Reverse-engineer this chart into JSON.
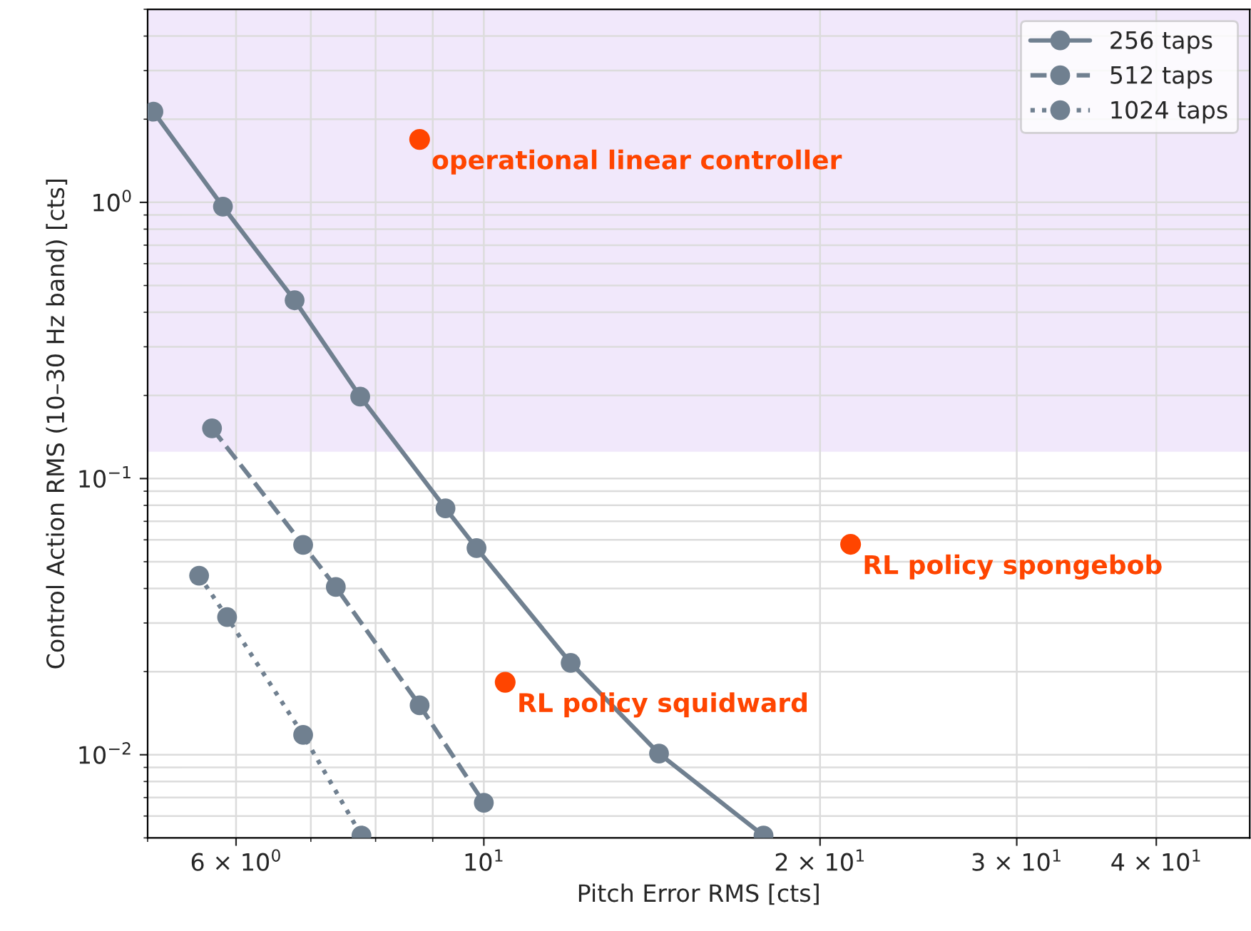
{
  "chart_data": {
    "type": "line",
    "xlabel": "Pitch Error RMS [cts]",
    "ylabel": "Control Action RMS (10–30 Hz band) [cts]",
    "log": "xy",
    "xlim": [
      5,
      48.5
    ],
    "ylim": [
      0.005,
      5
    ],
    "xticks": [
      {
        "value": 6,
        "label": "6 × 10$^{0}$"
      },
      {
        "value": 10,
        "label": "10$^{1}$"
      },
      {
        "value": 20,
        "label": "2 × 10$^{1}$"
      },
      {
        "value": 30,
        "label": "3 × 10$^{1}$"
      },
      {
        "value": 40,
        "label": "4 × 10$^{1}$"
      }
    ],
    "yticks": [
      {
        "value": 0.01,
        "label": "10$^{−2}$"
      },
      {
        "value": 0.1,
        "label": "10$^{−1}$"
      },
      {
        "value": 1,
        "label": "10$^{0}$"
      }
    ],
    "grid": true,
    "legend": "top right",
    "marker": "circle",
    "bands": [
      {
        "axis": "y",
        "from": 0.125,
        "to": 5,
        "color": "#f1e8fb"
      }
    ],
    "series": [
      {
        "name": "256 taps",
        "color": "#708090",
        "line_style": "solid",
        "x": [
          5.06,
          5.84,
          6.77,
          7.75,
          9.24,
          9.85,
          11.96,
          14.35,
          17.8
        ],
        "values": [
          2.13,
          0.965,
          0.442,
          0.198,
          0.078,
          0.056,
          0.0215,
          0.0101,
          0.0051
        ]
      },
      {
        "name": "512 taps",
        "color": "#708090",
        "line_style": "dashed",
        "x": [
          5.71,
          6.89,
          7.37,
          8.76,
          10.0
        ],
        "values": [
          0.152,
          0.0575,
          0.0405,
          0.0151,
          0.0067
        ]
      },
      {
        "name": "1024 taps",
        "color": "#708090",
        "line_style": "dotted",
        "x": [
          5.56,
          5.89,
          6.89,
          7.77
        ],
        "values": [
          0.0445,
          0.0315,
          0.0118,
          0.0051
        ]
      },
      {
        "type": "scatter",
        "color": "#ff4500",
        "marker": "circle",
        "x": [
          8.76,
          10.45,
          21.3
        ],
        "values": [
          1.69,
          0.0183,
          0.0578
        ]
      }
    ],
    "annotations": [
      {
        "text": "operational linear controller",
        "x": 8.76,
        "y": 1.69
      },
      {
        "text": "RL policy squidward",
        "x": 10.45,
        "y": 0.0183
      },
      {
        "text": "RL policy spongebob",
        "x": 21.3,
        "y": 0.0578
      }
    ]
  }
}
